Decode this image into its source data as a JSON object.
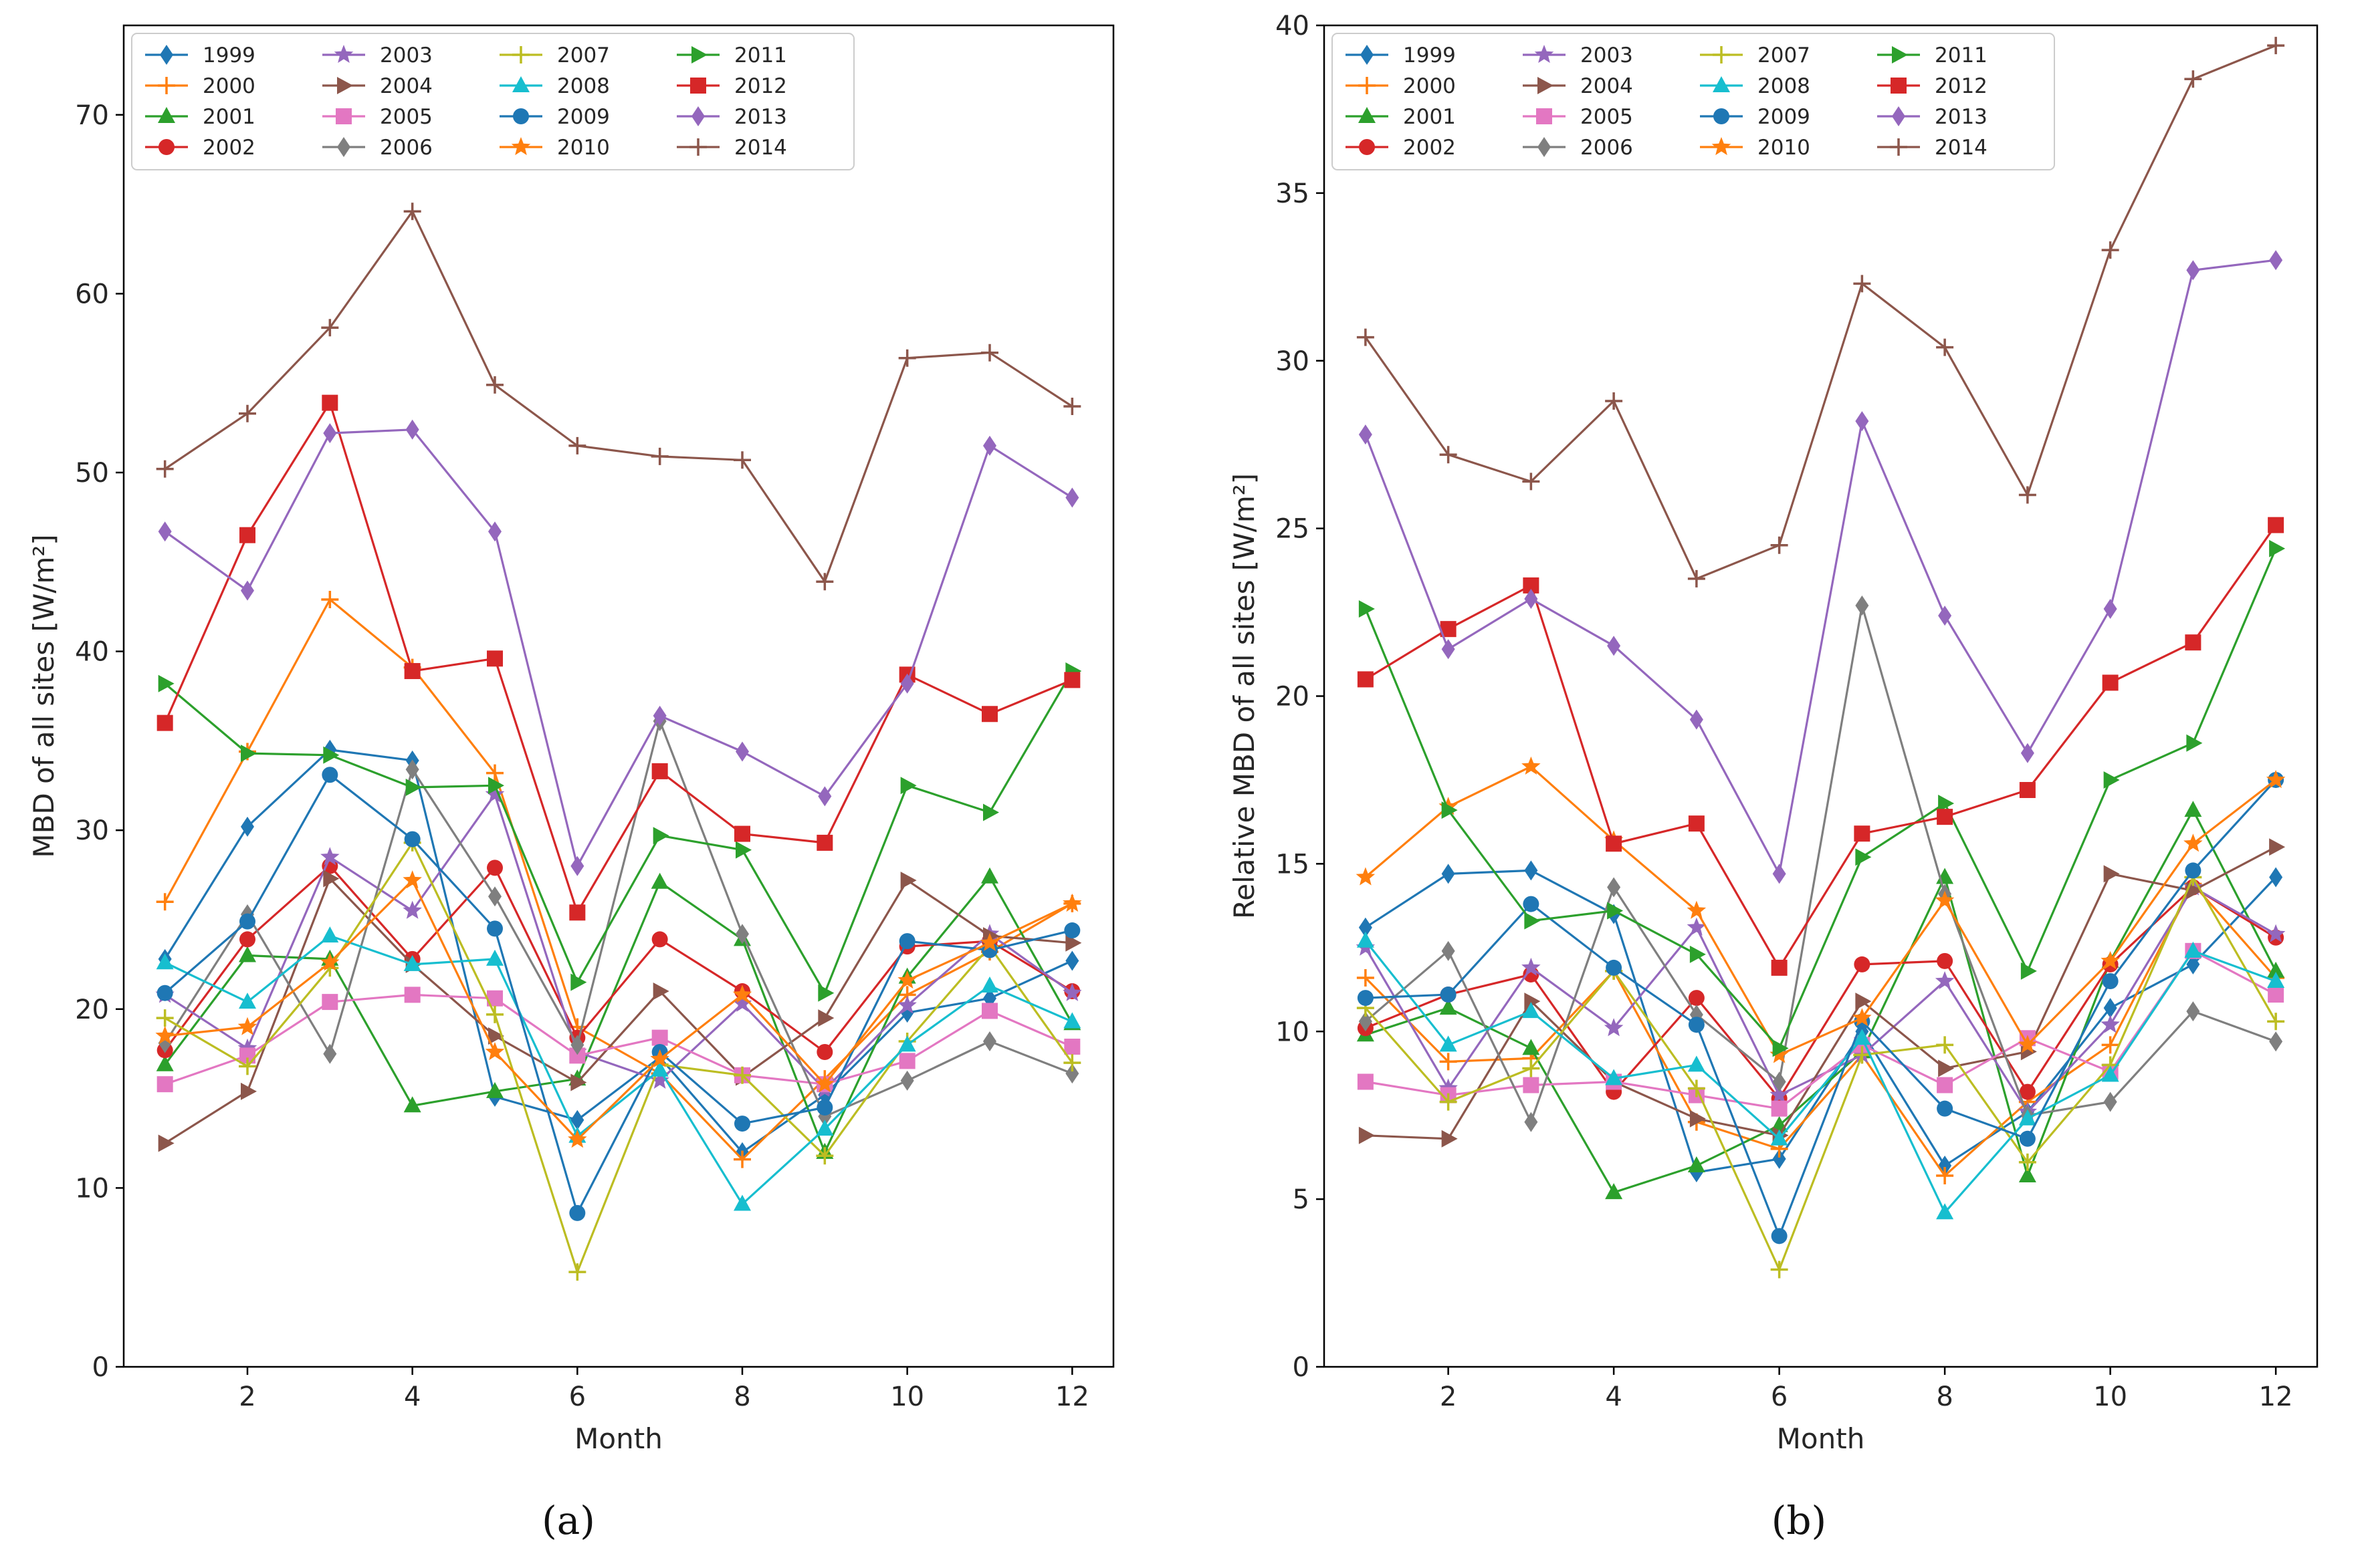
{
  "chart_data": [
    {
      "type": "line",
      "panel_label": "(a)",
      "title": "",
      "xlabel": "Month",
      "ylabel": "MBD of all sites [W/m²]",
      "xlim": [
        0.5,
        12.5
      ],
      "ylim": [
        0,
        75
      ],
      "xticks": [
        2,
        4,
        6,
        8,
        10,
        12
      ],
      "yticks": [
        0,
        10,
        20,
        30,
        40,
        50,
        60,
        70
      ],
      "grid": false,
      "legend_position": "top-left",
      "x": [
        1,
        2,
        3,
        4,
        5,
        6,
        7,
        8,
        9,
        10,
        11,
        12
      ],
      "series": [
        {
          "name": "1999",
          "color": "#1f77b4",
          "marker": "diamond",
          "values": [
            22.8,
            30.2,
            34.5,
            33.9,
            15.1,
            13.8,
            17.3,
            12.0,
            15.2,
            19.8,
            20.6,
            22.7
          ]
        },
        {
          "name": "2000",
          "color": "#ff7f0e",
          "marker": "plus",
          "values": [
            26.0,
            34.4,
            42.9,
            39.1,
            33.2,
            19.0,
            16.4,
            11.6,
            16.1,
            20.8,
            23.2,
            25.9
          ]
        },
        {
          "name": "2001",
          "color": "#2ca02c",
          "marker": "triangle-up",
          "values": [
            16.9,
            23.0,
            22.8,
            14.6,
            15.4,
            16.1,
            27.1,
            23.9,
            12.0,
            21.8,
            27.4,
            19.2
          ]
        },
        {
          "name": "2002",
          "color": "#d62728",
          "marker": "circle",
          "values": [
            17.7,
            23.9,
            28.0,
            22.8,
            27.9,
            18.4,
            23.9,
            21.0,
            17.6,
            23.5,
            23.8,
            21.0
          ]
        },
        {
          "name": "2003",
          "color": "#9467bd",
          "marker": "star",
          "values": [
            20.8,
            17.8,
            28.5,
            25.5,
            32.0,
            17.6,
            16.0,
            20.3,
            15.5,
            20.2,
            24.2,
            20.9
          ]
        },
        {
          "name": "2004",
          "color": "#8c564b",
          "marker": "triangle-right",
          "values": [
            12.5,
            15.4,
            27.3,
            22.5,
            18.5,
            15.9,
            21.0,
            16.2,
            19.5,
            27.2,
            24.1,
            23.7
          ]
        },
        {
          "name": "2005",
          "color": "#e377c2",
          "marker": "square",
          "values": [
            15.8,
            17.4,
            20.4,
            20.8,
            20.6,
            17.4,
            18.4,
            16.3,
            15.8,
            17.1,
            19.9,
            17.9
          ]
        },
        {
          "name": "2006",
          "color": "#7f7f7f",
          "marker": "diamond",
          "values": [
            18.1,
            25.3,
            17.5,
            33.4,
            26.3,
            18.0,
            36.1,
            24.2,
            14.0,
            16.0,
            18.2,
            16.4
          ]
        },
        {
          "name": "2007",
          "color": "#bcbd22",
          "marker": "plus",
          "values": [
            19.5,
            16.8,
            22.3,
            29.3,
            19.7,
            5.3,
            16.9,
            16.3,
            11.8,
            18.2,
            23.5,
            17.0
          ]
        },
        {
          "name": "2008",
          "color": "#17becf",
          "marker": "triangle-up",
          "values": [
            22.6,
            20.4,
            24.1,
            22.5,
            22.8,
            12.9,
            16.6,
            9.1,
            13.3,
            18.0,
            21.3,
            19.3
          ]
        },
        {
          "name": "2009",
          "color": "#1f77b4",
          "marker": "circle",
          "values": [
            20.9,
            24.9,
            33.1,
            29.5,
            24.5,
            8.6,
            17.6,
            13.6,
            14.5,
            23.8,
            23.3,
            24.4
          ]
        },
        {
          "name": "2010",
          "color": "#ff7f0e",
          "marker": "star",
          "values": [
            18.5,
            19.0,
            22.6,
            27.2,
            17.6,
            12.7,
            17.2,
            20.8,
            15.8,
            21.6,
            23.7,
            25.9
          ]
        },
        {
          "name": "2011",
          "color": "#2ca02c",
          "marker": "triangle-right",
          "values": [
            38.2,
            34.3,
            34.2,
            32.4,
            32.5,
            21.5,
            29.7,
            28.9,
            20.9,
            32.5,
            31.0,
            38.9
          ]
        },
        {
          "name": "2012",
          "color": "#d62728",
          "marker": "square",
          "values": [
            36.0,
            46.5,
            53.9,
            38.9,
            39.6,
            25.4,
            33.3,
            29.8,
            29.3,
            38.7,
            36.5,
            38.4
          ]
        },
        {
          "name": "2013",
          "color": "#9467bd",
          "marker": "diamond",
          "values": [
            46.7,
            43.4,
            52.2,
            52.4,
            46.7,
            28.0,
            36.4,
            34.4,
            31.9,
            38.2,
            51.5,
            48.6
          ]
        },
        {
          "name": "2014",
          "color": "#8c564b",
          "marker": "plus",
          "values": [
            50.2,
            53.3,
            58.1,
            64.6,
            54.9,
            51.5,
            50.9,
            50.7,
            43.9,
            56.4,
            56.7,
            53.7
          ]
        }
      ]
    },
    {
      "type": "line",
      "panel_label": "(b)",
      "title": "",
      "xlabel": "Month",
      "ylabel": "Relative MBD of all sites [W/m²]",
      "xlim": [
        0.5,
        12.5
      ],
      "ylim": [
        0,
        40
      ],
      "xticks": [
        2,
        4,
        6,
        8,
        10,
        12
      ],
      "yticks": [
        0,
        5,
        10,
        15,
        20,
        25,
        30,
        35,
        40
      ],
      "grid": false,
      "legend_position": "top-left",
      "x": [
        1,
        2,
        3,
        4,
        5,
        6,
        7,
        8,
        9,
        10,
        11,
        12
      ],
      "series": [
        {
          "name": "1999",
          "color": "#1f77b4",
          "marker": "diamond",
          "values": [
            13.1,
            14.7,
            14.8,
            13.5,
            5.8,
            6.2,
            10.0,
            6.0,
            7.6,
            10.7,
            12.0,
            14.6
          ]
        },
        {
          "name": "2000",
          "color": "#ff7f0e",
          "marker": "plus",
          "values": [
            11.6,
            9.1,
            9.2,
            11.8,
            7.3,
            6.5,
            9.3,
            5.7,
            7.9,
            9.6,
            14.4,
            11.6
          ]
        },
        {
          "name": "2001",
          "color": "#2ca02c",
          "marker": "triangle-up",
          "values": [
            9.9,
            10.7,
            9.5,
            5.2,
            6.0,
            7.2,
            9.4,
            14.6,
            5.7,
            12.1,
            16.6,
            11.8
          ]
        },
        {
          "name": "2002",
          "color": "#d62728",
          "marker": "circle",
          "values": [
            10.1,
            11.1,
            11.7,
            8.2,
            11.0,
            8.0,
            12.0,
            12.1,
            8.2,
            12.0,
            14.3,
            12.8
          ]
        },
        {
          "name": "2003",
          "color": "#9467bd",
          "marker": "star",
          "values": [
            12.5,
            8.3,
            11.9,
            10.1,
            13.1,
            8.1,
            9.3,
            11.5,
            7.6,
            10.2,
            14.3,
            12.9
          ]
        },
        {
          "name": "2004",
          "color": "#8c564b",
          "marker": "triangle-right",
          "values": [
            6.9,
            6.8,
            10.9,
            8.5,
            7.4,
            6.9,
            10.9,
            8.9,
            9.4,
            14.7,
            14.2,
            15.5
          ]
        },
        {
          "name": "2005",
          "color": "#e377c2",
          "marker": "square",
          "values": [
            8.5,
            8.1,
            8.4,
            8.5,
            8.1,
            7.7,
            9.6,
            8.4,
            9.8,
            8.8,
            12.4,
            11.1
          ]
        },
        {
          "name": "2006",
          "color": "#7f7f7f",
          "marker": "diamond",
          "values": [
            10.3,
            12.4,
            7.3,
            14.3,
            10.5,
            8.5,
            22.7,
            14.1,
            7.5,
            7.9,
            10.6,
            9.7
          ]
        },
        {
          "name": "2007",
          "color": "#bcbd22",
          "marker": "plus",
          "values": [
            10.7,
            7.9,
            8.9,
            11.8,
            8.3,
            2.9,
            9.3,
            9.6,
            6.1,
            9.0,
            14.6,
            10.3
          ]
        },
        {
          "name": "2008",
          "color": "#17becf",
          "marker": "triangle-up",
          "values": [
            12.7,
            9.6,
            10.6,
            8.6,
            9.0,
            6.8,
            9.8,
            4.6,
            7.4,
            8.7,
            12.4,
            11.5
          ]
        },
        {
          "name": "2009",
          "color": "#1f77b4",
          "marker": "circle",
          "values": [
            11.0,
            11.1,
            13.8,
            11.9,
            10.2,
            3.9,
            10.3,
            7.7,
            6.8,
            11.5,
            14.8,
            17.5
          ]
        },
        {
          "name": "2010",
          "color": "#ff7f0e",
          "marker": "star",
          "values": [
            14.6,
            16.7,
            17.9,
            15.7,
            13.6,
            9.3,
            10.4,
            13.9,
            9.6,
            12.1,
            15.6,
            17.5
          ]
        },
        {
          "name": "2011",
          "color": "#2ca02c",
          "marker": "triangle-right",
          "values": [
            22.6,
            16.6,
            13.3,
            13.6,
            12.3,
            9.5,
            15.2,
            16.8,
            11.8,
            17.5,
            18.6,
            24.4
          ]
        },
        {
          "name": "2012",
          "color": "#d62728",
          "marker": "square",
          "values": [
            20.5,
            22.0,
            23.3,
            15.6,
            16.2,
            11.9,
            15.9,
            16.4,
            17.2,
            20.4,
            21.6,
            25.1
          ]
        },
        {
          "name": "2013",
          "color": "#9467bd",
          "marker": "diamond",
          "values": [
            27.8,
            21.4,
            22.9,
            21.5,
            19.3,
            14.7,
            28.2,
            22.4,
            18.3,
            22.6,
            32.7,
            33.0
          ]
        },
        {
          "name": "2014",
          "color": "#8c564b",
          "marker": "plus",
          "values": [
            30.7,
            27.2,
            26.4,
            28.8,
            23.5,
            24.5,
            32.3,
            30.4,
            26.0,
            33.3,
            38.4,
            39.4
          ]
        }
      ]
    }
  ]
}
